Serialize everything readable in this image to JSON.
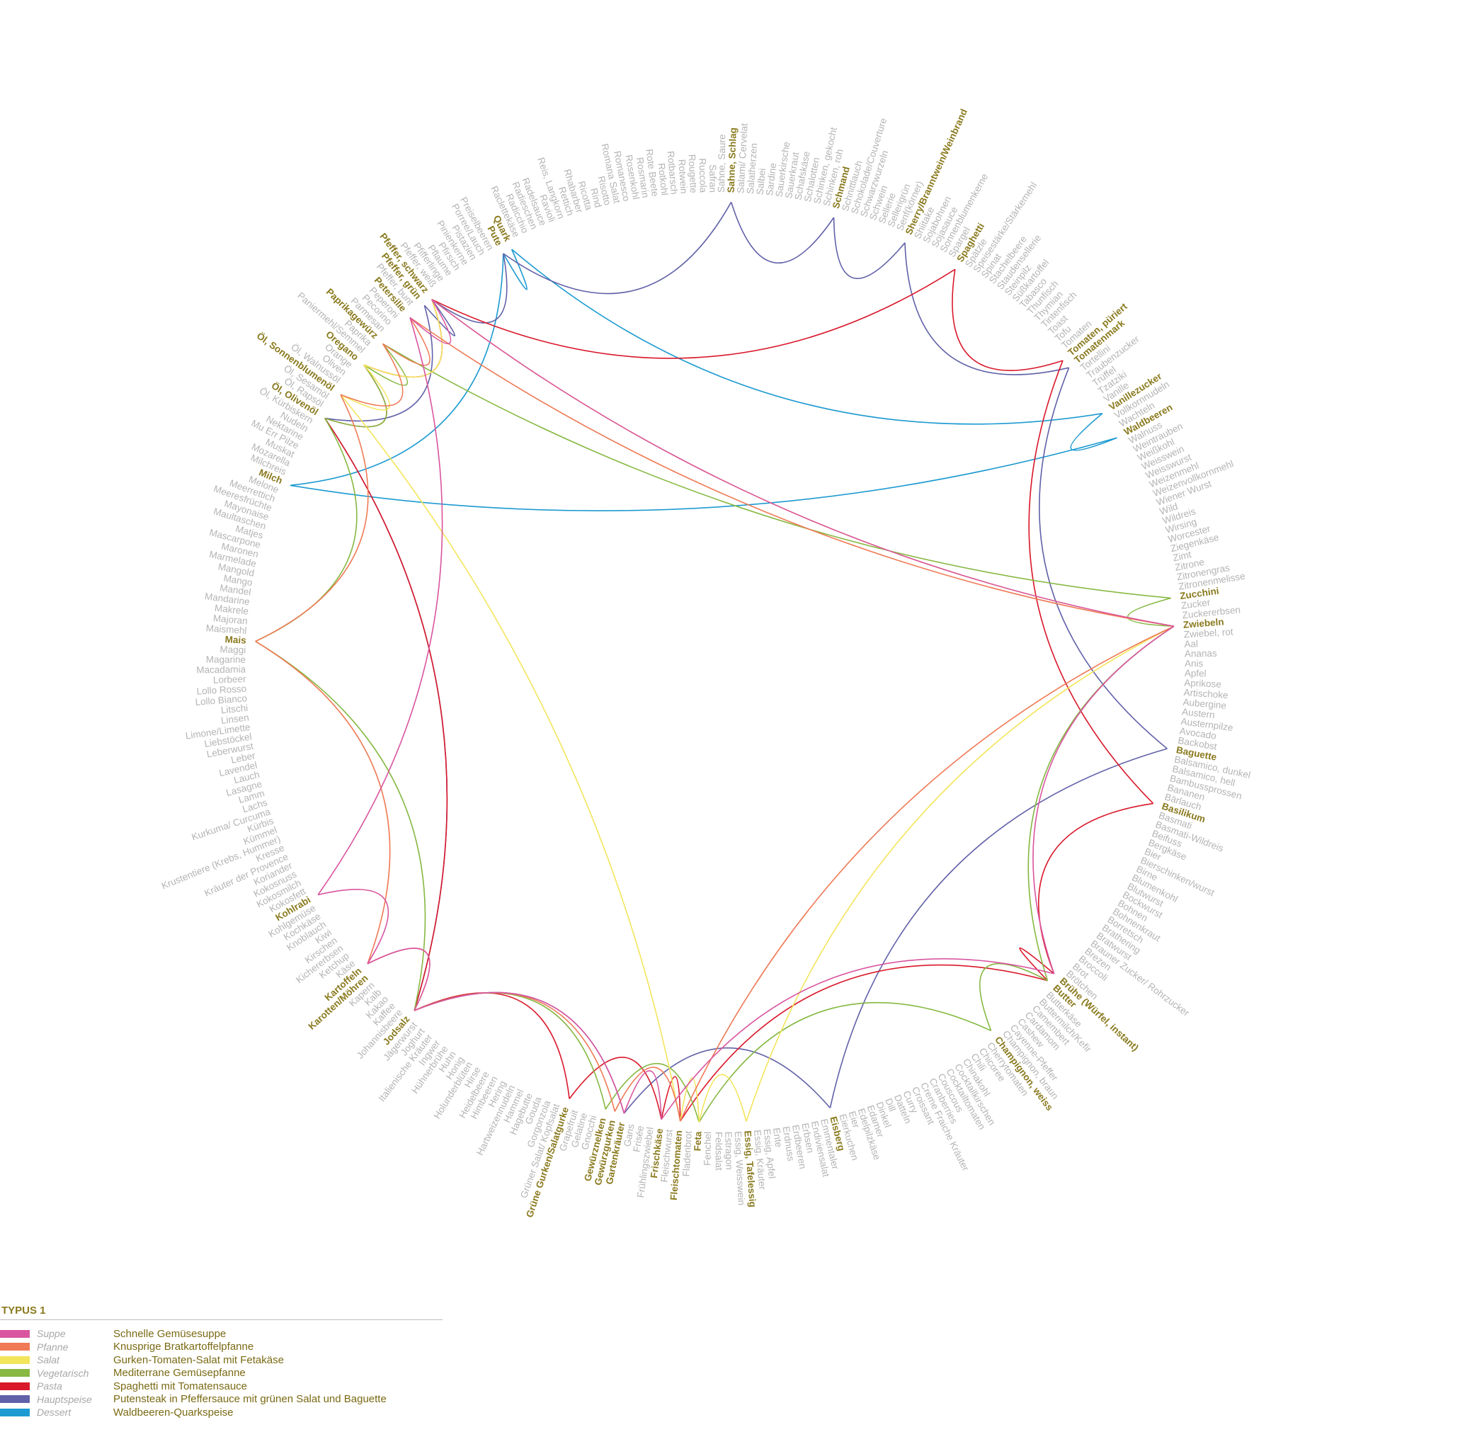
{
  "legend": {
    "title": "TYPUS 1",
    "entries": [
      {
        "type": "Suppe",
        "dish": "Schnelle Gemüsesuppe",
        "color": "#d9559f"
      },
      {
        "type": "Pfanne",
        "dish": "Knusprige Bratkartoffelpfanne",
        "color": "#ef7a55"
      },
      {
        "type": "Salat",
        "dish": "Gurken-Tomaten-Salat mit Fetakäse",
        "color": "#f3e55b"
      },
      {
        "type": "Vegetarisch",
        "dish": "Mediterrane Gemüsepfanne",
        "color": "#86b842"
      },
      {
        "type": "Pasta",
        "dish": "Spaghetti mit Tomatensauce",
        "color": "#d9182a"
      },
      {
        "type": "Hauptspeise",
        "dish": "Putensteak in Pfeffersauce mit grünen Salat und Baguette",
        "color": "#6161a9"
      },
      {
        "type": "Dessert",
        "dish": "Waldbeeren-Quarkspeise",
        "color": "#1d9ad1"
      }
    ]
  },
  "ingredients": [
    "Sahne, Schlag",
    "Salami/ Cervelat",
    "Salatherzen",
    "Salbei",
    "Sardine",
    "Sauerkirsche",
    "Sauerkraut",
    "Schafskäse",
    "Schalotten",
    "Schinken, gekocht",
    "Schinken, roh",
    "Schmand",
    "Schnittlauch",
    "Schokolade/Couverture",
    "Schwarzwurzeln",
    "Schwein",
    "Sellerie",
    "Sellerigrün",
    "Senf(körner)",
    "Sherry/Branntwein/Weinbrand",
    "Shiitake",
    "Sojabohnen",
    "Sojasauce",
    "Sonnenblumenkerne",
    "Spargel",
    "Spaghetti",
    "Spätzle",
    "Speisestärke/Stärkemehl",
    "Spinat",
    "Stachelbeere",
    "Staudensellerie",
    "Steinpilz",
    "Süßkartoffel",
    "Tabasco",
    "Thunfisch",
    "Thymian",
    "Tintenfisch",
    "Toast",
    "Tofu",
    "Tomaten",
    "Tomaten, püriert",
    "Tomatenmark",
    "Tortellini",
    "Traubenzucker",
    "Trüffel",
    "Tzatziki",
    "Vanille",
    "Vanillezucker",
    "Vollkornnudeln",
    "Wachteln",
    "Waldbeeren",
    "Walnuss",
    "Weintrauben",
    "Weißkohl",
    "Weisswein",
    "Weisswurst",
    "Weizenmehl",
    "Weizenvollkornmehl",
    "Wiener Wurst",
    "Wild",
    "Wildreis",
    "Wirsing",
    "Worcester",
    "Ziegenkäse",
    "Zimt",
    "Zitrone",
    "Zitronengras",
    "Zitronenmelisse",
    "Zucchini",
    "Zucker",
    "Zuckererbsen",
    "Zwiebeln",
    "Zwiebel, rot",
    "Aal",
    "Ananas",
    "Anis",
    "Apfel",
    "Aprikose",
    "Artischoke",
    "Aubergine",
    "Austern",
    "Austernpilze",
    "Avocado",
    "Backobst",
    "Baguette",
    "Balsamico, dunkel",
    "Balsamico, hell",
    "Bambussprossen",
    "Bananen",
    "Bärlauch",
    "Basilikum",
    "Basmati",
    "Basmati-Wildreis",
    "Beifuss",
    "Bergkäse",
    "Bier",
    "Bierschinken/wurst",
    "Birne",
    "Blumenkohl",
    "Blutwurst",
    "Bockwurst",
    "Bohnen",
    "Bohnenkraut",
    "Borretsch",
    "Brathering",
    "Bratwurst",
    "Brauner Zucker/ Rohrzucker",
    "Brezen",
    "Broccoli",
    "Brot",
    "Brötchen",
    "Brühe (Würfel, instant)",
    "Butter",
    "Butterkäse",
    "Buttermilch/Kefir",
    "Camembert",
    "Cardamom",
    "Cashew",
    "Cayenne-Pfeffer",
    "Champignon, braun",
    "Champignon, weiss",
    "Cherrytomaten",
    "Chicoree",
    "Chili",
    "Chinakohl",
    "Cocktailkirschen",
    "Cocktailtomaten",
    "Couscous",
    "Cranberries",
    "Creme Fraiche Kräuter",
    "Croissant",
    "Curry",
    "Datteln",
    "Dill",
    "Dinkel",
    "Edamer",
    "Edelpilzkäse",
    "Eier",
    "Eierkuchen",
    "Eisberg",
    "Emmentaler",
    "Endiviensalat",
    "Erbsen",
    "Erdbeeren",
    "Erdnuss",
    "Ente",
    "Essig, Apfel",
    "Essig, Kräuter",
    "Essig, Tafelessig",
    "Essig, Weisswein",
    "Estragon",
    "Feldsalat",
    "Fenchel",
    "Feta",
    "Fladenbrot",
    "Fleischtomaten",
    "Fleischwurst",
    "Frischkäse",
    "Frühlingszwiebel",
    "Frisée",
    "Gans",
    "Gartenkräuter",
    "Gewürzgurken",
    "Gewürznelken",
    "Gnocchi",
    "Gelatine",
    "Grapefruit",
    "Grüne Gurken/Salatgurke",
    "Grüner Salat/ Kopfsalat",
    "Gorgonzola",
    "Gouda",
    "Hagebutte",
    "Hammel",
    "Hartweizennudeln",
    "Hering",
    "Himbeeren",
    "Heidelbeere",
    "Hirse",
    "Holunderblüten",
    "Honig",
    "Huhn",
    "Hühnerbrühe",
    "Ingwer",
    "Italienische Kräuter",
    "Joghurt",
    "Jägerwurst",
    "Jodsalz",
    "Johannisbeere",
    "Kaffee",
    "Kakao",
    "Kalb",
    "Kapern",
    "Karotten/Möhren",
    "Kartoffeln",
    "Käse",
    "Ketchup",
    "Kichererbsen",
    "Kirschen",
    "Kiwi",
    "Knoblauch",
    "Kochkäse",
    "Kohlgemüse",
    "Kohlrabi",
    "Kokosfett",
    "Kokosmilch",
    "Kokosnuss",
    "Koriander",
    "Kräuter der Provence",
    "Kresse",
    "Krustentiere (Krebs, Hummer)",
    "Kümmel",
    "Kürbis",
    "Kurkuma/ Curcuma",
    "Lachs",
    "Lamm",
    "Lasagne",
    "Lauch",
    "Lavendel",
    "Leber",
    "Leberwurst",
    "Liebstöckel",
    "Limone/Limette",
    "Linsen",
    "Litschi",
    "Lollo Bianco",
    "Lollo Rosso",
    "Lorbeer",
    "Macadamia",
    "Magarine",
    "Maggi",
    "Mais",
    "Maismehl",
    "Majoran",
    "Makrele",
    "Mandarine",
    "Mandel",
    "Mango",
    "Mangold",
    "Marmelade",
    "Maronen",
    "Mascarpone",
    "Matjes",
    "Maultaschen",
    "Mayonaise",
    "Meeresfrüchte",
    "Meerrettich",
    "Melone",
    "Milch",
    "Milchreis",
    "Mozarella",
    "Muskat",
    "Mu Err Pilze",
    "Nektarine",
    "Nudeln",
    "Öl, Kürbiskern",
    "Öl, Olivenöl",
    "Öl, Rapsöl",
    "Öl, Sesamöl",
    "Öl, Sonnenblumenöl",
    "Öl, Walnussöl",
    "Oliven",
    "Orange",
    "Oregano",
    "Paniermehl/Semmel",
    "Paprika",
    "Paprikagewürz",
    "Parmesan",
    "Pecorino",
    "Peperoni",
    "Petersilie",
    "Pfeffer, bunt",
    "Pfeffer, grün",
    "Pfeffer, schwarz",
    "Pfeffer, weiß",
    "Pfifferlinge",
    "Pflaume",
    "Pfirsich",
    "Pinienkerne",
    "Pistazien",
    "Porree/Lauch",
    "Preiselbeeren",
    "Pute",
    "Quark",
    "Raclettekäse",
    "Radicchio",
    "Radieschen",
    "Radelsauce",
    "Ravioli",
    "Reis, Langkorn",
    "Rettich",
    "Rhabarber",
    "Ricotta",
    "Rind",
    "Risotto",
    "Romana Salat",
    "Romanesco",
    "Rosenkohl",
    "Rosmarin",
    "Rote Beete",
    "Rotkohl",
    "Rotbarsch",
    "Rotwein",
    "Rougette",
    "Ruccola",
    "Safran",
    "Sahne, Saure"
  ],
  "highlighted": [
    "Sahne, Schlag",
    "Schmand",
    "Sherry/Branntwein/Weinbrand",
    "Spaghetti",
    "Tomaten, püriert",
    "Tomatenmark",
    "Vanillezucker",
    "Waldbeeren",
    "Zucchini",
    "Zwiebeln",
    "Baguette",
    "Basilikum",
    "Brühe (Würfel, instant)",
    "Butter",
    "Champignon, weiss",
    "Eisberg",
    "Essig, Tafelessig",
    "Feta",
    "Fleischtomaten",
    "Frischkäse",
    "Gartenkräuter",
    "Gewürzgurken",
    "Gewürznelken",
    "Grüne Gurken/Salatgurke",
    "Jodsalz",
    "Karotten/Möhren",
    "Kartoffeln",
    "Kohlrabi",
    "Mais",
    "Milch",
    "Öl, Olivenöl",
    "Öl, Sonnenblumenöl",
    "Oregano",
    "Paprikagewürz",
    "Petersilie",
    "Pfeffer, grün",
    "Pfeffer, schwarz",
    "Pute",
    "Quark"
  ],
  "recipes": [
    {
      "color": "#1d9ad1",
      "ingredients": [
        "Pute",
        "Quark",
        "Milch",
        "Vanillezucker",
        "Waldbeeren"
      ]
    },
    {
      "color": "#6161a9",
      "ingredients": [
        "Pute",
        "Sahne, Schlag",
        "Schmand",
        "Sherry/Branntwein/Weinbrand",
        "Tomatenmark",
        "Baguette",
        "Eisberg",
        "Gartenkräuter",
        "Jodsalz",
        "Öl, Olivenöl",
        "Pfeffer, schwarz",
        "Pfeffer, grün"
      ]
    },
    {
      "color": "#d9182a",
      "ingredients": [
        "Spaghetti",
        "Tomaten, püriert",
        "Basilikum",
        "Butter",
        "Brühe (Würfel, instant)",
        "Fleischtomaten",
        "Frischkäse",
        "Grüne Gurken/Salatgurke",
        "Jodsalz",
        "Öl, Olivenöl",
        "Oregano",
        "Pfeffer, schwarz"
      ]
    },
    {
      "color": "#86b842",
      "ingredients": [
        "Zucchini",
        "Zwiebeln",
        "Champignon, weiss",
        "Butter",
        "Feta",
        "Gewürznelken",
        "Jodsalz",
        "Mais",
        "Öl, Olivenöl",
        "Paprikagewürz",
        "Oregano"
      ]
    },
    {
      "color": "#f3e55b",
      "ingredients": [
        "Zwiebeln",
        "Essig, Tafelessig",
        "Feta",
        "Fleischtomaten",
        "Öl, Sonnenblumenöl",
        "Oregano",
        "Pfeffer, schwarz"
      ]
    },
    {
      "color": "#ef7a55",
      "ingredients": [
        "Zwiebeln",
        "Kartoffeln",
        "Mais",
        "Gewürzgurken",
        "Jodsalz",
        "Öl, Sonnenblumenöl",
        "Paprikagewürz",
        "Petersilie",
        "Fleischtomaten"
      ]
    },
    {
      "color": "#d9559f",
      "ingredients": [
        "Zwiebeln",
        "Kohlrabi",
        "Kartoffeln",
        "Brühe (Würfel, instant)",
        "Frischkäse",
        "Gartenkräuter",
        "Jodsalz",
        "Petersilie",
        "Pfeffer, schwarz"
      ]
    }
  ]
}
